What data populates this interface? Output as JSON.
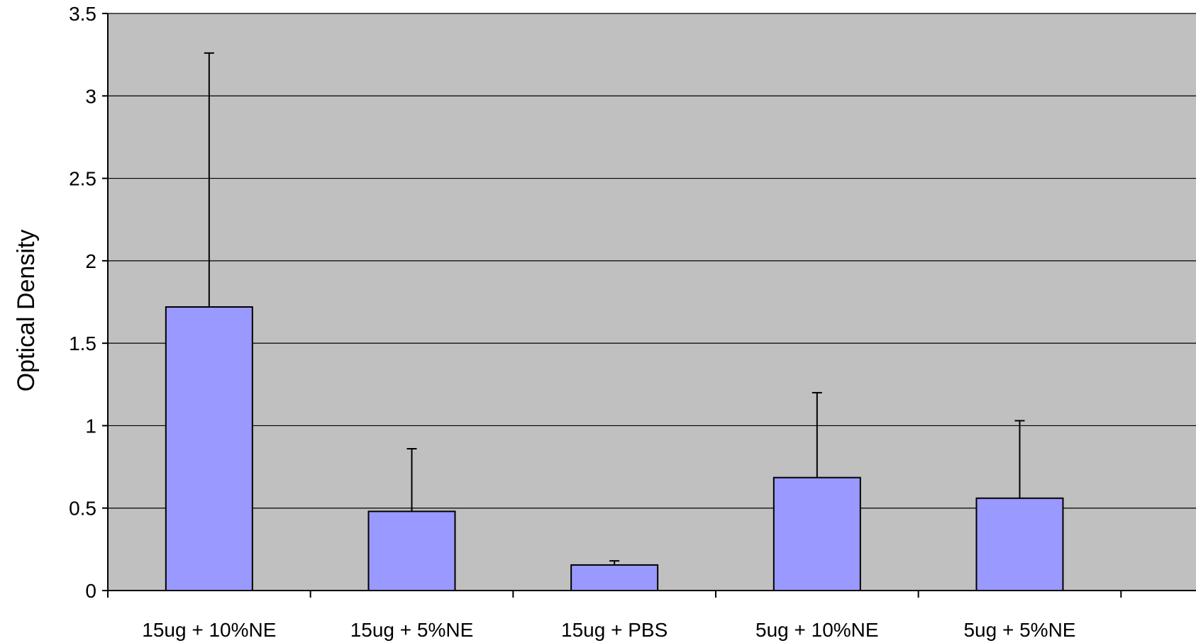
{
  "chart_data": {
    "type": "bar",
    "title": "",
    "xlabel": "",
    "ylabel": "Optical Density",
    "ylim": [
      0,
      3.5
    ],
    "yticks": [
      0,
      0.5,
      1,
      1.5,
      2,
      2.5,
      3,
      3.5
    ],
    "ytick_labels": [
      "0",
      "0.5",
      "1",
      "1.5",
      "2",
      "2.5",
      "3",
      "3.5"
    ],
    "grid": true,
    "legend": "none",
    "categories": [
      "15ug + 10%NE",
      "15ug + 5%NE",
      "15ug + PBS",
      "5ug + 10%NE",
      "5ug + 5%NE"
    ],
    "series": [
      {
        "values": [
          1.72,
          0.48,
          0.155,
          0.685,
          0.56
        ],
        "error_upper": [
          3.26,
          0.86,
          0.18,
          1.2,
          1.03
        ]
      }
    ],
    "colors": {
      "bar_fill": "#9999ff",
      "bar_stroke": "#000000",
      "plot_background": "#c0c0c0",
      "gridline": "#000000",
      "page_background": "#ffffff"
    }
  }
}
